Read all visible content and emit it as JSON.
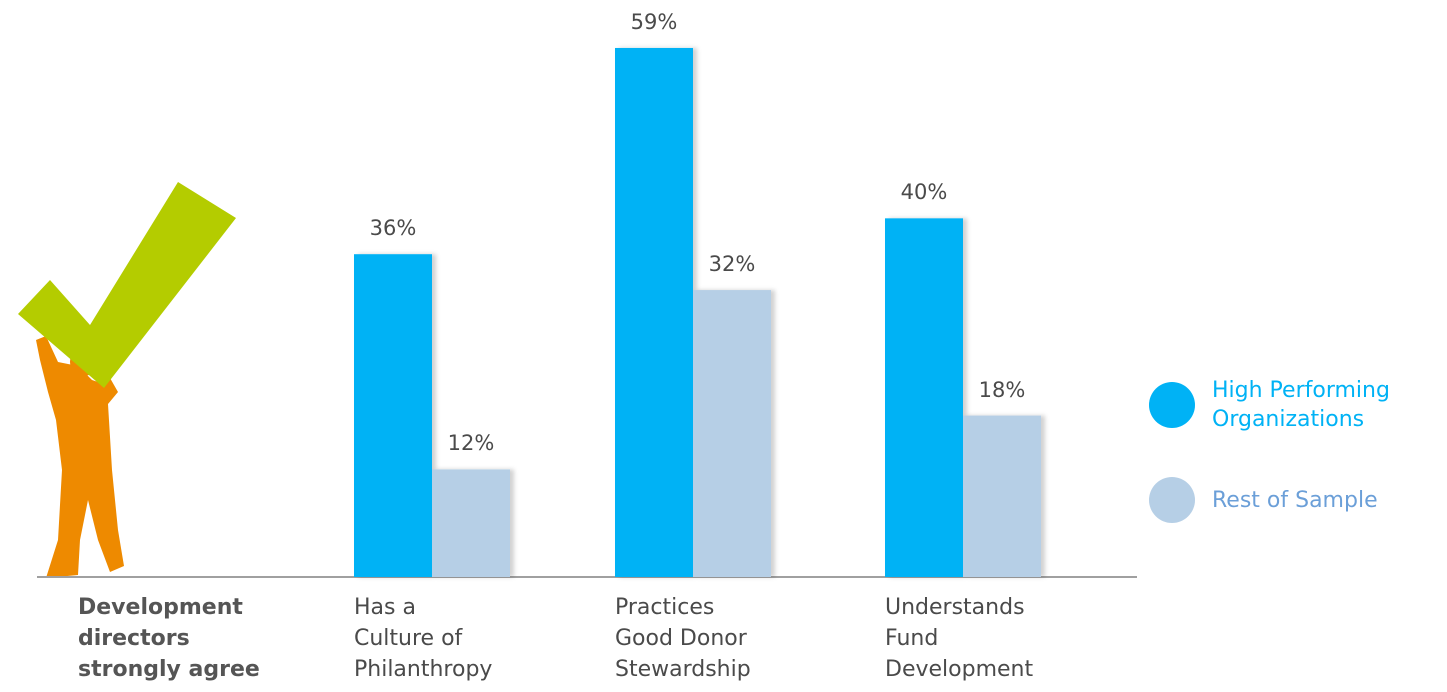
{
  "chart_data": {
    "type": "bar",
    "annotation": "Development\ndirectors\nstrongly agree",
    "categories": [
      "Has a\nCulture of\nPhilanthropy",
      "Practices\nGood Donor\nStewardship",
      "Understands\nFund\nDevelopment"
    ],
    "series": [
      {
        "name": "High Performing\nOrganizations",
        "color": "#00b2f5",
        "values": [
          36,
          59,
          40
        ],
        "value_labels": [
          "36%",
          "59%",
          "40%"
        ]
      },
      {
        "name": "Rest of Sample",
        "color": "#b6cfe6",
        "values": [
          12,
          32,
          18
        ],
        "value_labels": [
          "12%",
          "32%",
          "18%"
        ]
      }
    ],
    "ylim": [
      0,
      60
    ],
    "legend": "right"
  }
}
